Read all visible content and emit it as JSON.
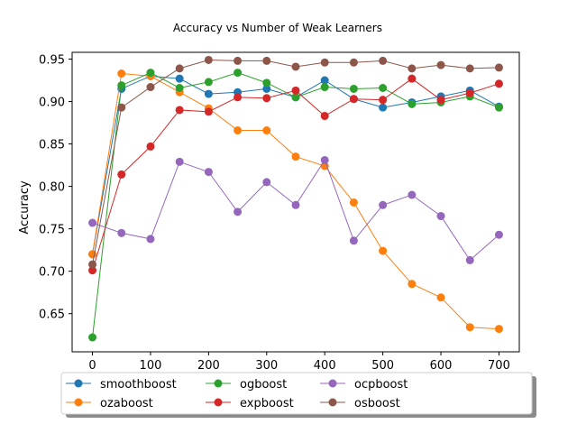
{
  "chart_data": {
    "type": "line",
    "title": "Accuracy vs Number of Weak Learners",
    "xlabel": "",
    "ylabel": "Accuracy",
    "xlim": [
      -35,
      735
    ],
    "ylim": [
      0.605,
      0.958
    ],
    "xticks": [
      0,
      100,
      200,
      300,
      400,
      500,
      600,
      700
    ],
    "yticks": [
      0.65,
      0.7,
      0.75,
      0.8,
      0.85,
      0.9,
      0.95
    ],
    "ytick_labels": [
      "0.65",
      "0.70",
      "0.75",
      "0.80",
      "0.85",
      "0.90",
      "0.95"
    ],
    "grid": false,
    "legend_placement": "below plot",
    "x": [
      0,
      50,
      100,
      150,
      200,
      250,
      300,
      350,
      400,
      450,
      500,
      550,
      600,
      650,
      700
    ],
    "series": [
      {
        "name": "smoothboost",
        "color": "#1f77b4",
        "values": [
          0.72,
          0.915,
          0.93,
          0.927,
          0.909,
          0.911,
          0.915,
          0.905,
          0.925,
          0.903,
          0.893,
          0.899,
          0.906,
          0.913,
          0.894
        ]
      },
      {
        "name": "ozaboost",
        "color": "#ff7f0e",
        "values": [
          0.72,
          0.933,
          0.93,
          0.911,
          0.892,
          0.866,
          0.866,
          0.835,
          0.824,
          0.781,
          0.724,
          0.685,
          0.669,
          0.634,
          0.632
        ]
      },
      {
        "name": "ogboost",
        "color": "#2ca02c",
        "values": [
          0.622,
          0.919,
          0.934,
          0.916,
          0.923,
          0.934,
          0.922,
          0.905,
          0.917,
          0.915,
          0.916,
          0.897,
          0.899,
          0.906,
          0.893
        ]
      },
      {
        "name": "expboost",
        "color": "#d62728",
        "values": [
          0.701,
          0.814,
          0.847,
          0.89,
          0.888,
          0.905,
          0.904,
          0.913,
          0.883,
          0.903,
          0.902,
          0.927,
          0.902,
          0.91,
          0.921
        ]
      },
      {
        "name": "ocpboost",
        "color": "#9467bd",
        "values": [
          0.757,
          0.745,
          0.738,
          0.829,
          0.817,
          0.77,
          0.805,
          0.778,
          0.831,
          0.736,
          0.778,
          0.79,
          0.765,
          0.713,
          0.743
        ]
      },
      {
        "name": "osboost",
        "color": "#8c564b",
        "values": [
          0.708,
          0.893,
          0.917,
          0.939,
          0.949,
          0.948,
          0.948,
          0.941,
          0.946,
          0.946,
          0.948,
          0.939,
          0.943,
          0.939,
          0.94
        ]
      }
    ]
  }
}
